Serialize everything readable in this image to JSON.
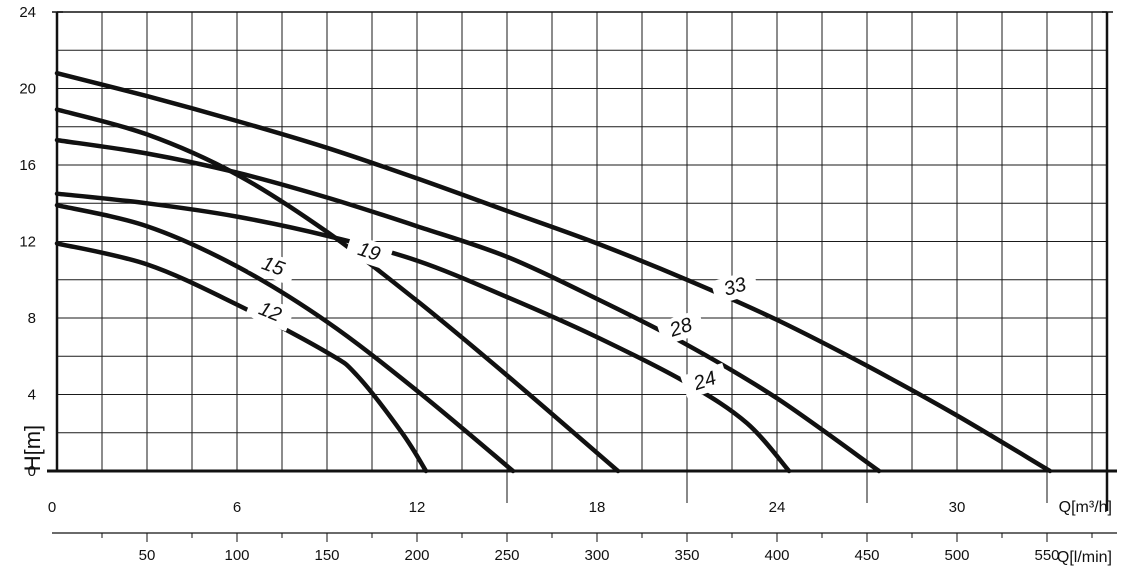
{
  "chart_data": {
    "type": "line",
    "title": "",
    "ylabel": "H[m]",
    "xlabel_primary": "Q[m³/h]",
    "xlabel_secondary": "Q[l/min]",
    "ylim": [
      0,
      24
    ],
    "xlim_m3h": [
      0,
      35
    ],
    "xlim_lmin": [
      0,
      583.33
    ],
    "grid": true,
    "y_ticks": [
      0,
      4,
      8,
      12,
      16,
      20,
      24
    ],
    "y_tick_labels": [
      "0",
      "4",
      "8",
      "12",
      "16",
      "20",
      "24"
    ],
    "x_ticks_m3h": [
      0,
      6,
      12,
      18,
      24,
      30
    ],
    "x_tick_labels_m3h": [
      "0",
      "6",
      "12",
      "18",
      "24",
      "30"
    ],
    "x_ticks_lmin": [
      50,
      100,
      150,
      200,
      250,
      300,
      350,
      400,
      450,
      500,
      550
    ],
    "x_tick_labels_lmin": [
      "50",
      "100",
      "150",
      "200",
      "250",
      "300",
      "350",
      "400",
      "450",
      "500",
      "550"
    ],
    "series": [
      {
        "name": "12",
        "x": [
          0,
          3,
          6,
          9,
          10,
          11.5,
          12.3
        ],
        "y": [
          11.9,
          10.8,
          8.7,
          6.2,
          5.0,
          2.0,
          0
        ]
      },
      {
        "name": "15",
        "x": [
          0,
          3,
          6,
          9,
          12,
          15.2
        ],
        "y": [
          13.9,
          12.8,
          10.7,
          7.8,
          4.2,
          0
        ]
      },
      {
        "name": "19",
        "x": [
          0,
          3,
          6,
          9,
          12,
          15,
          18.7
        ],
        "y": [
          18.9,
          17.6,
          15.5,
          12.5,
          8.9,
          5.0,
          0
        ]
      },
      {
        "name": "24",
        "x": [
          0,
          3,
          6,
          9,
          12,
          15,
          18,
          21,
          23,
          24.4
        ],
        "y": [
          14.5,
          14.0,
          13.3,
          12.3,
          11.0,
          9.1,
          7.0,
          4.6,
          2.5,
          0
        ]
      },
      {
        "name": "28",
        "x": [
          0,
          3,
          6,
          9,
          12,
          15,
          18,
          21,
          24,
          27.4
        ],
        "y": [
          17.3,
          16.6,
          15.6,
          14.3,
          12.8,
          11.2,
          9.0,
          6.6,
          3.8,
          0
        ]
      },
      {
        "name": "33",
        "x": [
          0,
          3,
          6,
          9,
          12,
          15,
          18,
          21,
          24,
          27,
          30,
          33.1
        ],
        "y": [
          20.8,
          19.6,
          18.3,
          16.9,
          15.3,
          13.6,
          11.9,
          10.0,
          7.9,
          5.5,
          2.9,
          0
        ]
      }
    ]
  }
}
